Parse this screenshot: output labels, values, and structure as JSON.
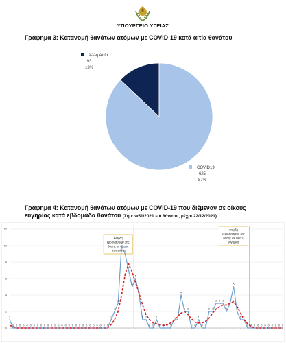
{
  "header": {
    "ministry": "ΥΠΟΥΡΓΕΙΟ ΥΓΕΙΑΣ",
    "emblem_icon": "cyprus-coat-of-arms-icon"
  },
  "chart_data": [
    {
      "type": "pie",
      "title": "Γράφημα 3: Κατανομή θανάτων ατόμων με COVID-19 κατά αιτία θανάτου",
      "slices": [
        {
          "label": "COVID19",
          "value": "625",
          "percent": "87%",
          "color": "#a8c4e8"
        },
        {
          "label": "Άλλη Αιτία",
          "value": "93",
          "percent": "13%",
          "color": "#0e2452"
        }
      ],
      "legend": "labels beside slices"
    },
    {
      "type": "line",
      "title": "Γράφημα 4: Κατανομή θανάτων ατόμων με COVID-19 που διέμεναν σε οίκους ευγηρίας κατά εβδομάδα θανάτου",
      "note": "(Σημ: w51/2021 = 0 θάνατοι, μέχρι 22/12/2021)",
      "ylim": [
        0,
        12
      ],
      "yticks": [
        "0",
        "2",
        "4",
        "6",
        "8",
        "10",
        "12"
      ],
      "grid": true,
      "series": [
        {
          "color": "#6fa0d0",
          "style": "solid",
          "values": [
            1,
            0,
            0,
            0,
            0,
            0,
            0,
            0,
            0,
            0,
            0,
            0,
            0,
            0,
            0,
            0,
            0,
            0,
            0,
            0,
            0,
            0,
            0,
            0,
            0,
            0,
            0,
            0,
            0,
            1,
            2,
            3,
            10,
            9,
            7,
            5,
            6,
            4,
            1,
            1,
            0,
            0,
            1,
            0,
            0,
            0,
            0,
            1,
            1,
            4,
            2,
            2,
            0,
            0,
            1,
            0,
            0,
            2,
            2,
            3,
            3,
            3,
            2,
            3,
            5,
            2,
            1,
            1,
            0,
            0,
            0,
            0,
            0,
            0,
            0,
            0,
            0,
            0,
            0
          ],
          "point_labels": [
            "1",
            "0",
            "0",
            "0",
            "0",
            "0",
            "0",
            "0",
            "0",
            "0",
            "0",
            "0",
            "0",
            "0",
            "0",
            "0",
            "0",
            "0",
            "0",
            "0",
            "0",
            "0",
            "0",
            "0",
            "0",
            "0",
            "0",
            "0",
            "0",
            "1",
            "2",
            "3",
            "10",
            "9",
            "7",
            "5",
            "6",
            "4",
            "1",
            "1",
            "0",
            "0",
            "1",
            "0",
            "0",
            "0",
            "0",
            "1",
            "1",
            "4",
            "2",
            "2",
            "0",
            "0",
            "1",
            "0",
            "0",
            "2",
            "2",
            "3",
            "3",
            "3",
            "2",
            "3",
            "5",
            "2",
            "1",
            "1",
            "0",
            "0",
            "0",
            "0",
            "0",
            "0",
            "0",
            "0",
            "0",
            "0",
            "0"
          ]
        },
        {
          "color": "#d81f1f",
          "style": "dashed",
          "values": [
            0.3,
            0.2,
            0,
            0,
            0,
            0,
            0,
            0,
            0,
            0,
            0,
            0,
            0,
            0,
            0,
            0,
            0,
            0,
            0,
            0,
            0,
            0,
            0,
            0,
            0,
            0,
            0,
            0,
            0,
            0.4,
            1,
            2,
            4,
            6.5,
            7.8,
            6.8,
            5.5,
            4.2,
            2.8,
            1.6,
            1,
            0.6,
            0.5,
            0.4,
            0.3,
            0.4,
            0.6,
            0.9,
            1.4,
            1.8,
            2,
            1.6,
            1.1,
            0.7,
            0.6,
            0.6,
            0.8,
            1.2,
            1.8,
            2.3,
            2.6,
            2.8,
            2.8,
            3,
            3.2,
            2.6,
            1.8,
            1,
            0.5,
            0.2,
            0,
            0,
            0,
            0,
            0,
            0,
            0,
            0,
            0
          ]
        }
      ],
      "annotations": [
        {
          "text": [
            "έναρξη",
            "εμβολιασμών 1ης",
            "δόσης σε οίκους",
            "ευγηρίας"
          ]
        },
        {
          "text": [
            "έναρξη",
            "εμβολιασμών 3ης",
            "δόσης σε οίκους",
            "ευγηρίας"
          ]
        }
      ]
    }
  ]
}
